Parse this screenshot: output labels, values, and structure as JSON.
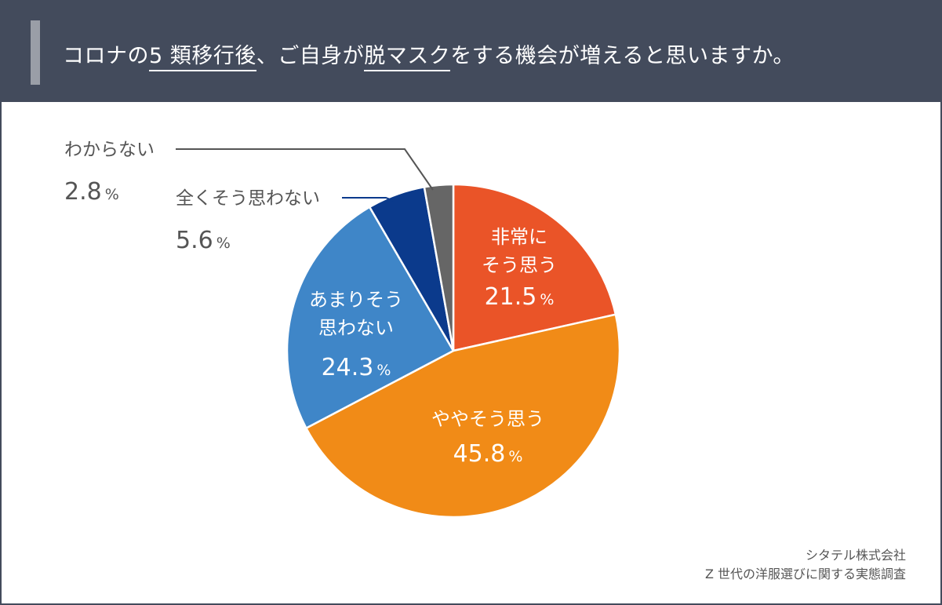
{
  "header": {
    "title_parts": [
      "コロナの",
      "5 類移行後",
      "、ご自身が",
      "脱マスク",
      "をする機会が増えると思いますか。"
    ]
  },
  "colors": {
    "header_bg": "#434b5c",
    "header_accent": "#9a9ea7",
    "slice_1": "#ea5428",
    "slice_2": "#f18b17",
    "slice_3": "#3f86c8",
    "slice_4": "#0b3a8c",
    "slice_5": "#666666"
  },
  "chart_data": {
    "type": "pie",
    "slices": [
      {
        "label_lines": [
          "非常に",
          "そう思う"
        ],
        "value": 21.5,
        "value_text": "21.5",
        "unit": "%",
        "color": "#ea5428"
      },
      {
        "label_lines": [
          "ややそう思う"
        ],
        "value": 45.8,
        "value_text": "45.8",
        "unit": "%",
        "color": "#f18b17"
      },
      {
        "label_lines": [
          "あまりそう",
          "思わない"
        ],
        "value": 24.3,
        "value_text": "24.3",
        "unit": "%",
        "color": "#3f86c8"
      },
      {
        "label_lines": [
          "全くそう思わない"
        ],
        "value": 5.6,
        "value_text": "5.6",
        "unit": "%",
        "color": "#0b3a8c"
      },
      {
        "label_lines": [
          "わからない"
        ],
        "value": 2.8,
        "value_text": "2.8",
        "unit": "%",
        "color": "#666666"
      }
    ],
    "start": "12 o'clock",
    "direction": "clockwise"
  },
  "source": {
    "line1": "シタテル株式会社",
    "line2": "Z 世代の洋服選びに関する実態調査"
  }
}
